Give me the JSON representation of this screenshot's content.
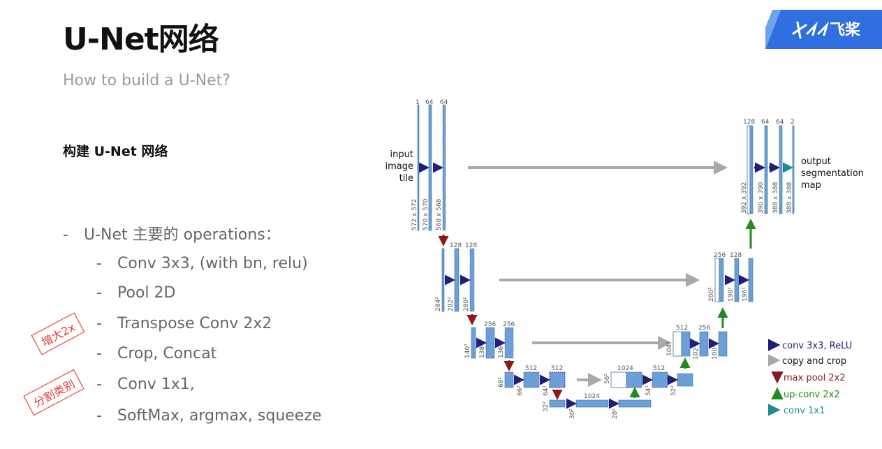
{
  "slide": {
    "title": "U-Net网络",
    "subtitle": "How to build a U-Net?",
    "heading": "构建 U-Net 网络",
    "ops_header": "U-Net 主要的 operations：",
    "ops": [
      "Conv 3x3, (with bn, relu)",
      "Pool 2D",
      "Transpose Conv 2x2",
      "Crop, Concat",
      "Conv 1x1,",
      "SoftMax, argmax, squeeze"
    ],
    "stamps": [
      "增大2x",
      "分割类别"
    ],
    "logo_text": "飞桨"
  },
  "diagram": {
    "input_label": [
      "input",
      "image",
      "tile"
    ],
    "output_label": [
      "output",
      "segmentation",
      "map"
    ],
    "channels": {
      "l1": [
        "1",
        "64",
        "64"
      ],
      "l2": [
        "128",
        "128"
      ],
      "l3": [
        "256",
        "256"
      ],
      "l4": [
        "512",
        "512"
      ],
      "bottom": [
        "1024"
      ],
      "r4": [
        "1024",
        "512"
      ],
      "r3": [
        "512",
        "256"
      ],
      "r2": [
        "256",
        "128"
      ],
      "r1": [
        "128",
        "64",
        "64",
        "2"
      ]
    },
    "sizes": {
      "l1": [
        "572 x 572",
        "570 x 570",
        "568 x 568"
      ],
      "l2": [
        "284²",
        "282²",
        "280²"
      ],
      "l3": [
        "140²",
        "138²",
        "136²"
      ],
      "l4": [
        "68²",
        "66²",
        "64²"
      ],
      "bottom": [
        "32²",
        "30²",
        "28²"
      ],
      "r4": [
        "56²",
        "54²",
        "52²"
      ],
      "r3": [
        "104²",
        "102²",
        "100²"
      ],
      "r2": [
        "200²",
        "198²",
        "196²"
      ],
      "r1": [
        "392 x 392",
        "390 x 390",
        "388 x 388",
        "388 x 388"
      ]
    },
    "legend": [
      {
        "label": "conv 3x3, ReLU",
        "color": "#1f1f7a"
      },
      {
        "label": "copy and crop",
        "color": "#a9a9a9"
      },
      {
        "label": "max pool 2x2",
        "color": "#8b1a1a"
      },
      {
        "label": "up-conv 2x2",
        "color": "#1e8c1e"
      },
      {
        "label": "conv 1x1",
        "color": "#1f8c8c"
      }
    ],
    "colors": {
      "block": "#6d9fd6",
      "block_edge": "#3a6ea8"
    }
  }
}
